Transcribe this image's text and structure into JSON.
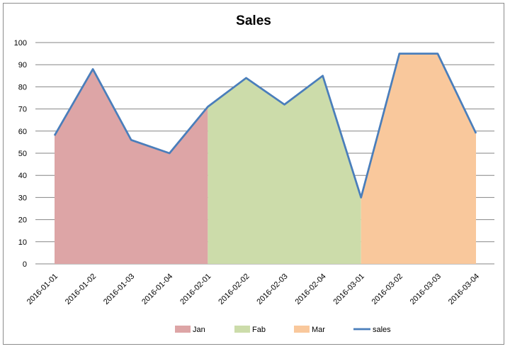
{
  "chart_data": {
    "type": "area",
    "title": "Sales",
    "xlabel": "",
    "ylabel": "",
    "ylim": [
      0,
      100
    ],
    "yticks": [
      0,
      10,
      20,
      30,
      40,
      50,
      60,
      70,
      80,
      90,
      100
    ],
    "grid": true,
    "legend_position": "bottom",
    "categories": [
      "2016-01-01",
      "2016-01-02",
      "2016-01-03",
      "2016-01-04",
      "2016-02-01",
      "2016-02-02",
      "2016-02-03",
      "2016-02-04",
      "2016-03-01",
      "2016-03-02",
      "2016-03-03",
      "2016-03-04"
    ],
    "series": [
      {
        "name": "Jan",
        "type": "area",
        "color": "#dda5a6",
        "values": [
          58,
          88,
          56,
          50,
          71,
          null,
          null,
          null,
          null,
          null,
          null,
          null
        ]
      },
      {
        "name": "Fab",
        "type": "area",
        "color": "#ccdcaa",
        "values": [
          null,
          null,
          null,
          null,
          71,
          84,
          72,
          85,
          30,
          null,
          null,
          null
        ]
      },
      {
        "name": "Mar",
        "type": "area",
        "color": "#f9c89c",
        "values": [
          null,
          null,
          null,
          null,
          null,
          null,
          null,
          null,
          30,
          95,
          95,
          59
        ]
      },
      {
        "name": "sales",
        "type": "line",
        "color": "#4a7ebb",
        "values": [
          58,
          88,
          56,
          50,
          71,
          84,
          72,
          85,
          30,
          95,
          95,
          59
        ]
      }
    ]
  }
}
